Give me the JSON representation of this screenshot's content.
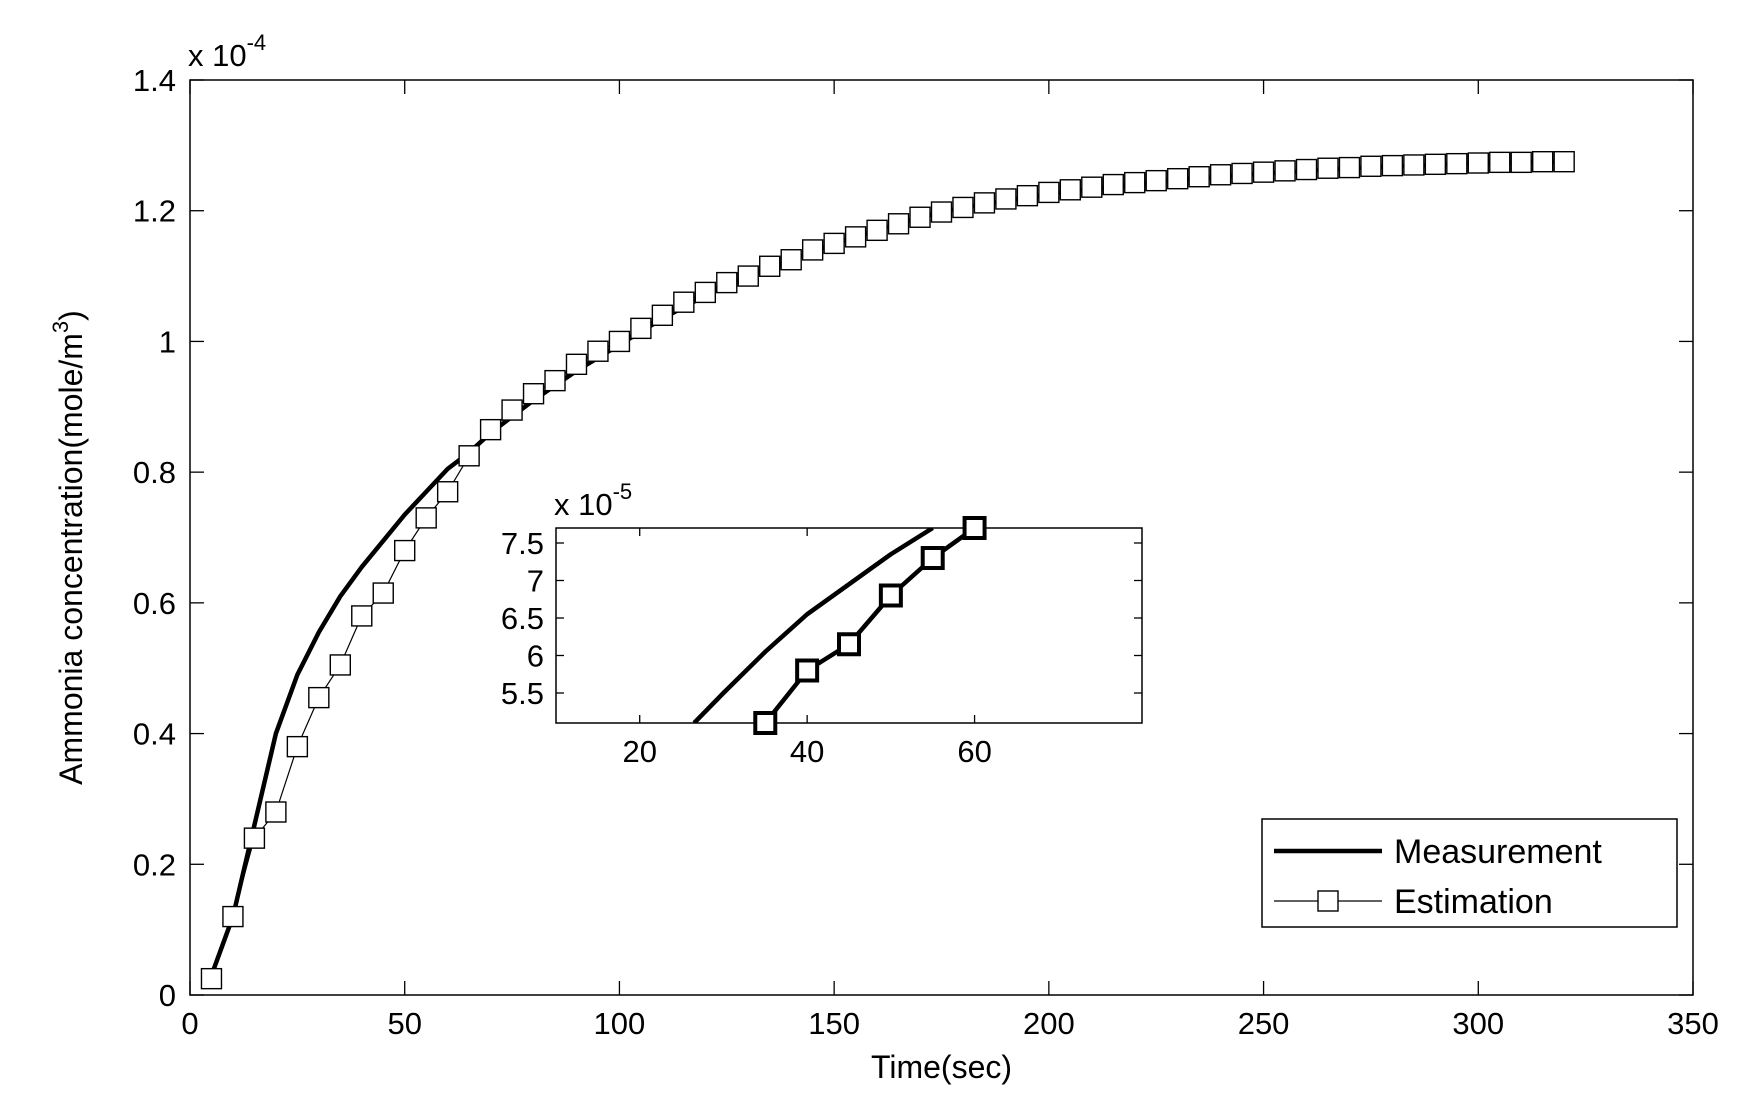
{
  "chart_data": [
    {
      "type": "line",
      "role": "main",
      "xlabel": "Time(sec)",
      "ylabel_base": "Ammonia concentration(mole/m",
      "ylabel_sup": "3",
      "ylabel_close": ")",
      "y_exponent_base": "x 10",
      "y_exponent_power": "-4",
      "xlim": [
        0,
        350
      ],
      "ylim": [
        0,
        1.4
      ],
      "x_ticks": [
        0,
        50,
        100,
        150,
        200,
        250,
        300,
        350
      ],
      "x_tick_labels": [
        "0",
        "50",
        "100",
        "150",
        "200",
        "250",
        "300",
        "350"
      ],
      "y_ticks": [
        0,
        0.2,
        0.4,
        0.6,
        0.8,
        1.0,
        1.2,
        1.4
      ],
      "y_tick_labels": [
        "0",
        "0.2",
        "0.4",
        "0.6",
        "0.8",
        "1",
        "1.2",
        "1.4"
      ],
      "grid": false,
      "legend": {
        "position": "bottom-right",
        "entries": [
          "Measurement",
          "Estimation"
        ]
      },
      "series": [
        {
          "name": "Measurement",
          "style": "thick solid line",
          "x": [
            5,
            10,
            15,
            20,
            25,
            30,
            35,
            40,
            45,
            50,
            55,
            60,
            65,
            70,
            80,
            90,
            100,
            110,
            120,
            130,
            140,
            150,
            160,
            170,
            180,
            190,
            200,
            210,
            220,
            230,
            240,
            250,
            260,
            270,
            280,
            290,
            300,
            310,
            320
          ],
          "y": [
            0.03,
            0.12,
            0.26,
            0.4,
            0.49,
            0.555,
            0.61,
            0.655,
            0.695,
            0.735,
            0.77,
            0.805,
            0.83,
            0.86,
            0.91,
            0.955,
            0.995,
            1.035,
            1.07,
            1.1,
            1.125,
            1.15,
            1.17,
            1.19,
            1.205,
            1.215,
            1.225,
            1.233,
            1.24,
            1.248,
            1.252,
            1.257,
            1.261,
            1.265,
            1.268,
            1.27,
            1.273,
            1.274,
            1.275
          ]
        },
        {
          "name": "Estimation",
          "style": "thin line with square markers",
          "x": [
            5,
            10,
            15,
            20,
            25,
            30,
            35,
            40,
            45,
            50,
            55,
            60,
            65,
            70,
            75,
            80,
            85,
            90,
            95,
            100,
            105,
            110,
            115,
            120,
            125,
            130,
            135,
            140,
            145,
            150,
            155,
            160,
            165,
            170,
            175,
            180,
            185,
            190,
            195,
            200,
            205,
            210,
            215,
            220,
            225,
            230,
            235,
            240,
            245,
            250,
            255,
            260,
            265,
            270,
            275,
            280,
            285,
            290,
            295,
            300,
            305,
            310,
            315,
            320
          ],
          "y": [
            0.025,
            0.12,
            0.24,
            0.28,
            0.38,
            0.455,
            0.505,
            0.58,
            0.615,
            0.68,
            0.73,
            0.77,
            0.825,
            0.865,
            0.895,
            0.92,
            0.94,
            0.965,
            0.985,
            1.0,
            1.02,
            1.04,
            1.06,
            1.075,
            1.09,
            1.1,
            1.115,
            1.125,
            1.14,
            1.15,
            1.16,
            1.17,
            1.18,
            1.19,
            1.198,
            1.205,
            1.212,
            1.218,
            1.223,
            1.228,
            1.232,
            1.236,
            1.24,
            1.243,
            1.246,
            1.249,
            1.252,
            1.255,
            1.257,
            1.259,
            1.261,
            1.263,
            1.265,
            1.266,
            1.268,
            1.269,
            1.27,
            1.271,
            1.272,
            1.273,
            1.274,
            1.274,
            1.275,
            1.275
          ]
        }
      ]
    },
    {
      "type": "line",
      "role": "inset",
      "y_exponent_base": "x 10",
      "y_exponent_power": "-5",
      "xlim": [
        10,
        80
      ],
      "ylim": [
        5.1,
        7.7
      ],
      "x_ticks": [
        20,
        40,
        60
      ],
      "x_tick_labels": [
        "20",
        "40",
        "60"
      ],
      "y_ticks": [
        5.5,
        6,
        6.5,
        7,
        7.5
      ],
      "y_tick_labels": [
        "5.5",
        "6",
        "6.5",
        "7",
        "7.5"
      ],
      "grid": false,
      "series": [
        {
          "name": "Measurement",
          "style": "thick solid line",
          "x": [
            26.5,
            30,
            35,
            40,
            45,
            50,
            55
          ],
          "y": [
            5.1,
            5.5,
            6.05,
            6.55,
            6.95,
            7.35,
            7.7
          ]
        },
        {
          "name": "Estimation",
          "style": "thick line with square markers",
          "x": [
            35,
            40,
            45,
            50,
            55,
            60
          ],
          "y": [
            5.1,
            5.8,
            6.15,
            6.8,
            7.3,
            7.7
          ]
        }
      ]
    }
  ]
}
